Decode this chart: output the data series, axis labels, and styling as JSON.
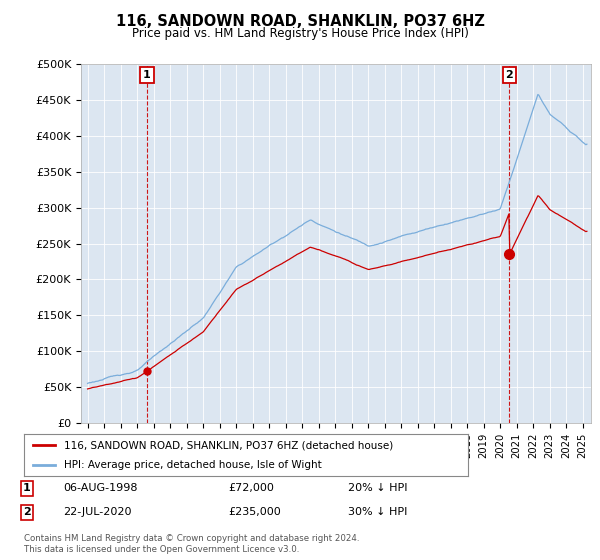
{
  "title": "116, SANDOWN ROAD, SHANKLIN, PO37 6HZ",
  "subtitle": "Price paid vs. HM Land Registry's House Price Index (HPI)",
  "ylim": [
    0,
    500000
  ],
  "yticks": [
    0,
    50000,
    100000,
    150000,
    200000,
    250000,
    300000,
    350000,
    400000,
    450000,
    500000
  ],
  "ytick_labels": [
    "£0",
    "£50K",
    "£100K",
    "£150K",
    "£200K",
    "£250K",
    "£300K",
    "£350K",
    "£400K",
    "£450K",
    "£500K"
  ],
  "plot_bg_color": "#dce6f1",
  "hpi_color": "#7aaddb",
  "price_color": "#cc0000",
  "dashed_line_color": "#cc0000",
  "transaction1_date": 1998.6,
  "transaction1_price": 72000,
  "transaction1_label": "1",
  "transaction2_date": 2020.55,
  "transaction2_price": 235000,
  "transaction2_label": "2",
  "legend_line1": "116, SANDOWN ROAD, SHANKLIN, PO37 6HZ (detached house)",
  "legend_line2": "HPI: Average price, detached house, Isle of Wight",
  "footnote_line1": "Contains HM Land Registry data © Crown copyright and database right 2024.",
  "footnote_line2": "This data is licensed under the Open Government Licence v3.0.",
  "table_row1_num": "1",
  "table_row1_date": "06-AUG-1998",
  "table_row1_price": "£72,000",
  "table_row1_hpi": "20% ↓ HPI",
  "table_row2_num": "2",
  "table_row2_date": "22-JUL-2020",
  "table_row2_price": "£235,000",
  "table_row2_hpi": "30% ↓ HPI"
}
